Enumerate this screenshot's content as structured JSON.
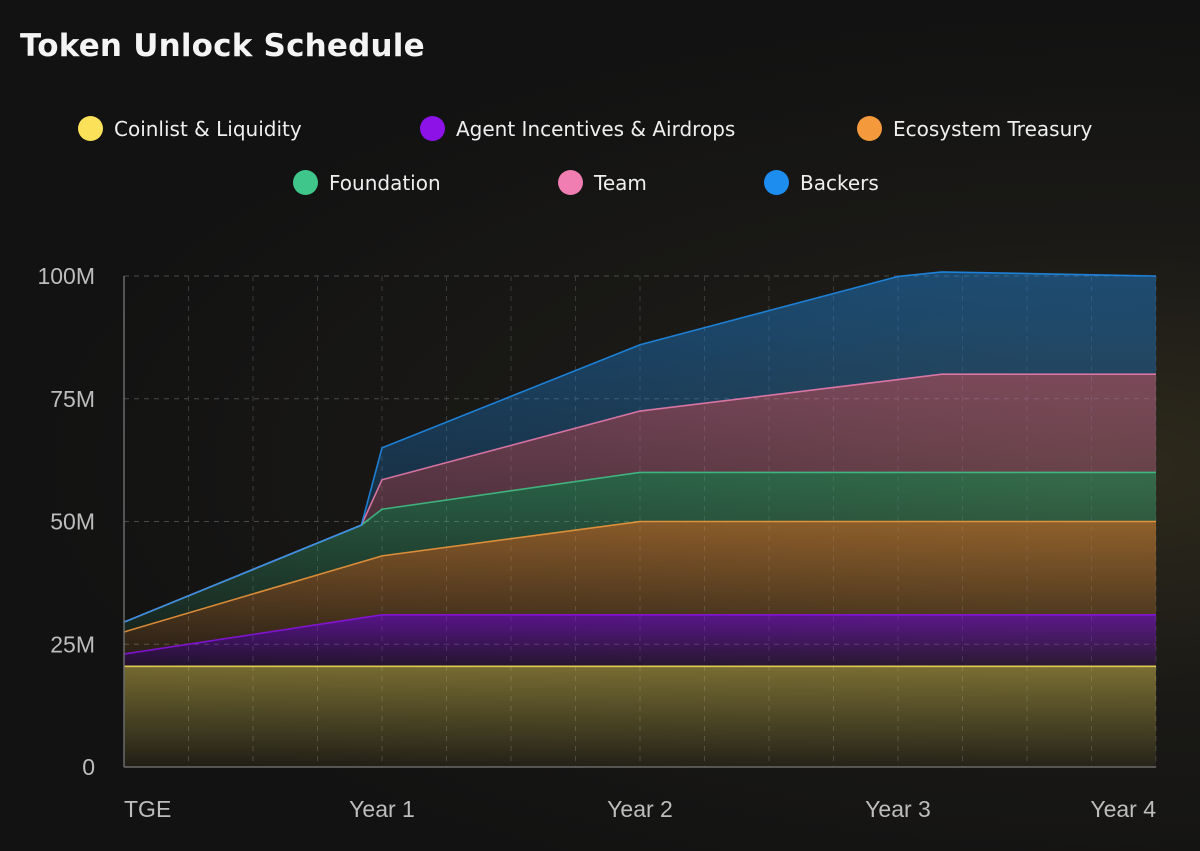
{
  "colors": {
    "coinlist": "#fbe15a",
    "agent": "#8c12e8",
    "ecosystem": "#f59a3c",
    "foundation": "#3fc68a",
    "team": "#f17eb2",
    "backers": "#1d8ef0"
  },
  "chart_data": {
    "type": "area",
    "stacked": true,
    "title": "Token Unlock Schedule",
    "xlabel": "",
    "ylabel": "",
    "x_tick_labels": [
      "TGE",
      "Year 1",
      "Year 2",
      "Year 3",
      "Year 4"
    ],
    "y_tick_labels": [
      "100M",
      "75M",
      "50M",
      "25M",
      "0"
    ],
    "y_ticks": [
      100,
      75,
      50,
      25,
      0
    ],
    "ylim": [
      0,
      100
    ],
    "xlim": [
      0,
      4
    ],
    "series": [
      {
        "name": "Coinlist & Liquidity",
        "key": "coinlist",
        "points": [
          [
            0,
            20.5
          ],
          [
            4,
            20.5
          ]
        ]
      },
      {
        "name": "Agent Incentives & Airdrops",
        "key": "agent",
        "points": [
          [
            0,
            2.5
          ],
          [
            1,
            10.5
          ],
          [
            4,
            10.5
          ]
        ]
      },
      {
        "name": "Ecosystem Treasury",
        "key": "ecosystem",
        "points": [
          [
            0,
            4.5
          ],
          [
            1,
            12
          ],
          [
            2,
            19
          ],
          [
            4,
            19
          ]
        ]
      },
      {
        "name": "Foundation",
        "key": "foundation",
        "points": [
          [
            0,
            2
          ],
          [
            0.92,
            7.5
          ],
          [
            1,
            9.5
          ],
          [
            2,
            10
          ],
          [
            4,
            10
          ]
        ]
      },
      {
        "name": "Team",
        "key": "team",
        "points": [
          [
            0,
            0
          ],
          [
            0.92,
            0
          ],
          [
            1,
            6
          ],
          [
            2,
            12.5
          ],
          [
            3.17,
            20
          ],
          [
            4,
            20
          ]
        ]
      },
      {
        "name": "Backers",
        "key": "backers",
        "points": [
          [
            0,
            0
          ],
          [
            0.92,
            0
          ],
          [
            1,
            6.5
          ],
          [
            2,
            13.5
          ],
          [
            3,
            21
          ],
          [
            4,
            20
          ]
        ]
      }
    ],
    "legend": {
      "rows": [
        [
          "Coinlist & Liquidity",
          "Agent Incentives & Airdrops",
          "Ecosystem Treasury"
        ],
        [
          "Foundation",
          "Team",
          "Backers"
        ]
      ]
    }
  }
}
